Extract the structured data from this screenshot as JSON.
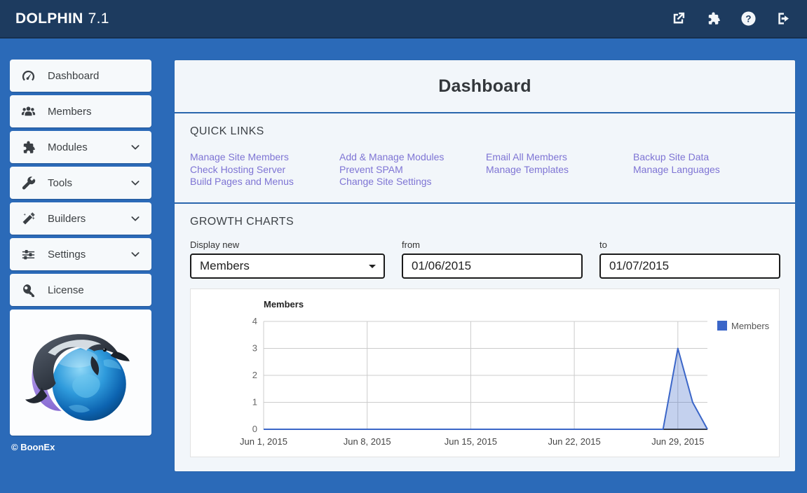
{
  "topbar": {
    "brand": "DOLPHIN",
    "version": "7.1",
    "help_glyph": "?",
    "icon_names": [
      "external-link-icon",
      "puzzle-icon",
      "help-icon",
      "logout-icon"
    ]
  },
  "sidebar": {
    "items": [
      {
        "label": "Dashboard",
        "icon": "gauge",
        "has_submenu": false
      },
      {
        "label": "Members",
        "icon": "users",
        "has_submenu": false
      },
      {
        "label": "Modules",
        "icon": "puzzle",
        "has_submenu": true
      },
      {
        "label": "Tools",
        "icon": "wrench",
        "has_submenu": true
      },
      {
        "label": "Builders",
        "icon": "magic-wand",
        "has_submenu": true
      },
      {
        "label": "Settings",
        "icon": "sliders",
        "has_submenu": true
      },
      {
        "label": "License",
        "icon": "key",
        "has_submenu": false
      }
    ],
    "copyright": "© BoonEx"
  },
  "main": {
    "title": "Dashboard",
    "quick_links": {
      "heading": "QUICK LINKS",
      "columns": [
        [
          "Manage Site Members",
          "Check Hosting Server",
          "Build Pages and Menus"
        ],
        [
          "Add & Manage Modules",
          "Prevent SPAM",
          "Change Site Settings"
        ],
        [
          "Email All Members",
          "Manage Templates"
        ],
        [
          "Backup Site Data",
          "Manage Languages"
        ]
      ]
    },
    "growth": {
      "heading": "GROWTH CHARTS",
      "display_label": "Display new",
      "display_value": "Members",
      "from_label": "from",
      "from_value": "01/06/2015",
      "to_label": "to",
      "to_value": "01/07/2015"
    }
  },
  "chart_data": {
    "type": "area",
    "title": "Members",
    "legend": [
      "Members"
    ],
    "legend_position": "right",
    "grid": true,
    "x_start": "Jun 1, 2015",
    "x_end": "Jul 1, 2015",
    "x_tick_labels": [
      "Jun 1, 2015",
      "Jun 8, 2015",
      "Jun 15, 2015",
      "Jun 22, 2015",
      "Jun 29, 2015"
    ],
    "x_tick_day_indexes": [
      0,
      7,
      14,
      21,
      28
    ],
    "values": [
      0,
      0,
      0,
      0,
      0,
      0,
      0,
      0,
      0,
      0,
      0,
      0,
      0,
      0,
      0,
      0,
      0,
      0,
      0,
      0,
      0,
      0,
      0,
      0,
      0,
      0,
      0,
      0,
      3,
      1,
      0
    ],
    "y_ticks": [
      0,
      1,
      2,
      3,
      4
    ],
    "ylim": [
      0,
      4
    ],
    "series_color": "#3b66c8",
    "fill_color": "rgba(59,102,200,0.30)"
  },
  "colors": {
    "topbar_bg": "#1d3b5f",
    "page_bg": "#2b6ab8",
    "panel_bg": "#f2f6fa",
    "panel_border": "#2a66ad",
    "card_bg": "#f6f9fb",
    "link_purple": "#7e74d4",
    "chart_line": "#3b66c8"
  }
}
